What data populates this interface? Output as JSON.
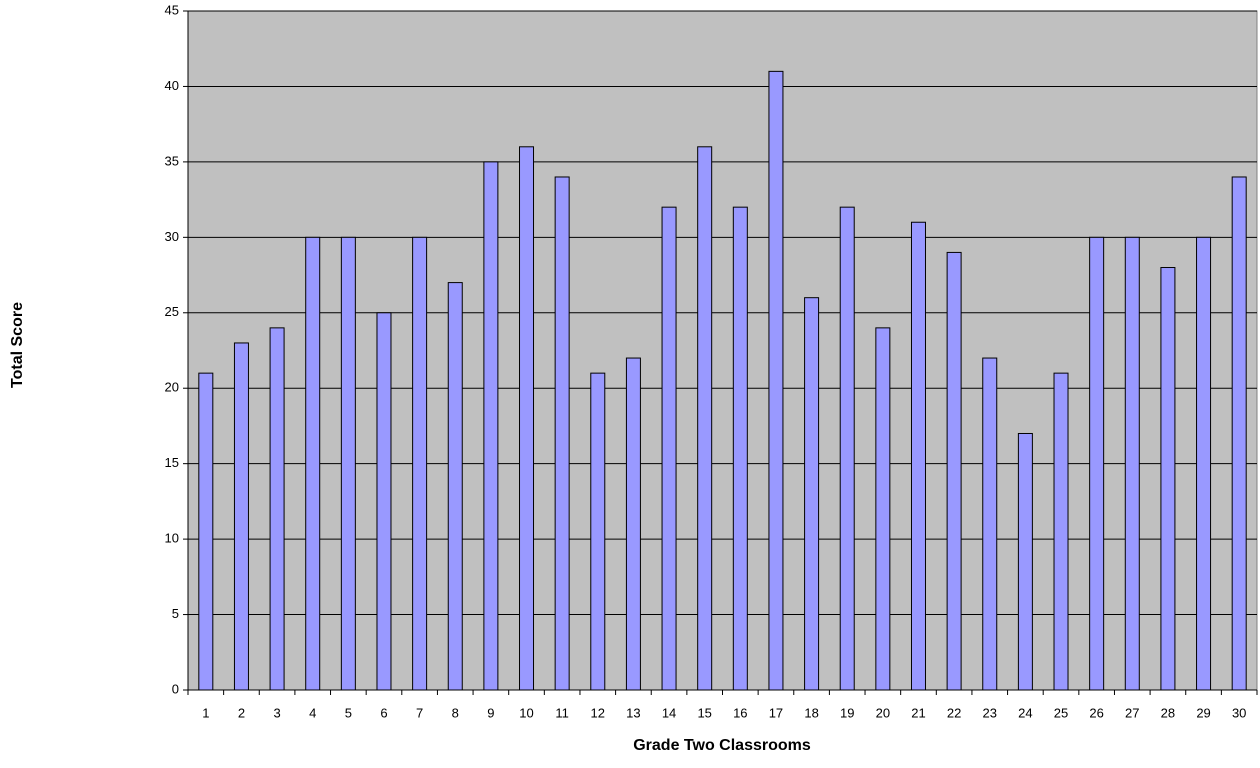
{
  "chart_data": {
    "type": "bar",
    "x_label": "Grade Two Classrooms",
    "y_label": "Total Score",
    "categories": [
      "1",
      "2",
      "3",
      "4",
      "5",
      "6",
      "7",
      "8",
      "9",
      "10",
      "11",
      "12",
      "13",
      "14",
      "15",
      "16",
      "17",
      "18",
      "19",
      "20",
      "21",
      "22",
      "23",
      "24",
      "25",
      "26",
      "27",
      "28",
      "29",
      "30"
    ],
    "values": [
      21,
      23,
      24,
      30,
      30,
      25,
      30,
      27,
      35,
      36,
      34,
      21,
      22,
      32,
      36,
      32,
      41,
      26,
      32,
      24,
      31,
      29,
      22,
      17,
      21,
      30,
      30,
      28,
      30,
      34
    ],
    "color": "#9999ff",
    "ylim": [
      0,
      45
    ],
    "yticks": [
      0,
      5,
      10,
      15,
      20,
      25,
      30,
      35,
      40,
      45
    ],
    "grid": true
  }
}
